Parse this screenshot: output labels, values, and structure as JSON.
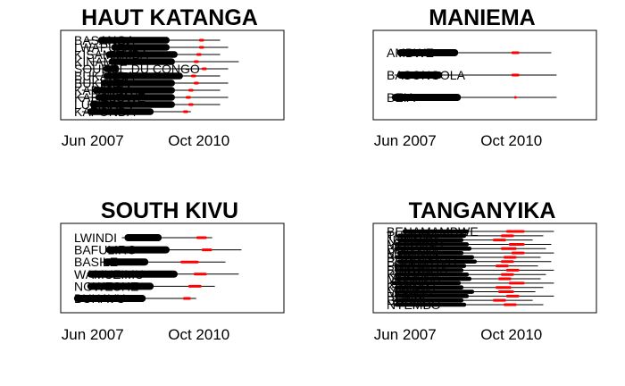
{
  "chart_data": [
    {
      "type": "timeline",
      "title": "HAUT KATANGA",
      "xticks": [
        "Jun 2007",
        "Oct 2010"
      ],
      "rows": [
        {
          "label": "BASANGA",
          "line": [
            "2007-03",
            "2011-06"
          ],
          "bar": [
            "2007-08",
            "2009-11"
          ],
          "red": [
            "2010-10",
            "2010-12"
          ]
        },
        {
          "label": "LWAPULA",
          "line": [
            "2007-02",
            "2011-09"
          ],
          "bar": [
            "2008-01",
            "2009-11"
          ],
          "red": [
            "2010-10",
            "2010-12"
          ]
        },
        {
          "label": "KISAMAMBA",
          "line": [
            "2007-04",
            "2011-06"
          ],
          "bar": [
            "2007-11",
            "2010-02"
          ],
          "red": [
            "2010-09",
            "2010-11"
          ]
        },
        {
          "label": "KINAMA",
          "line": [
            "2007-05",
            "2012-01"
          ],
          "bar": [
            "2007-12",
            "2010-01"
          ],
          "red": [
            "2010-08",
            "2010-10"
          ]
        },
        {
          "label": "SOURCE DU CONGO",
          "line": [
            "2007-02",
            "2011-09"
          ],
          "bar": [
            "2007-10",
            "2008-04"
          ],
          "red": [
            "2010-11",
            "2011-01"
          ]
        },
        {
          "label": "BUKANDA",
          "line": [
            "2007-04",
            "2011-06"
          ],
          "bar": [
            "2007-10",
            "2010-04"
          ],
          "red": [
            "2010-07",
            "2010-09"
          ]
        },
        {
          "label": "BUKINDA",
          "line": [
            "2007-01",
            "2011-09"
          ],
          "bar": [
            "2007-09",
            "2010-01"
          ],
          "red": [
            "2010-08",
            "2010-10"
          ]
        },
        {
          "label": "KAPANDA",
          "line": [
            "2007-02",
            "2011-06"
          ],
          "bar": [
            "2007-06",
            "2010-01"
          ],
          "red": [
            "2010-06",
            "2010-08"
          ]
        },
        {
          "label": "KAPOLOWE",
          "line": [
            "2006-12",
            "2011-09"
          ],
          "bar": [
            "2007-07",
            "2010-01"
          ],
          "red": [
            "2010-05",
            "2010-07"
          ]
        },
        {
          "label": "LUFIRA",
          "line": [
            "2007-04",
            "2011-06"
          ],
          "bar": [
            "2007-05",
            "2010-01"
          ],
          "red": [
            "2010-06",
            "2010-08"
          ]
        },
        {
          "label": "KAPONDA",
          "line": [
            "2007-02",
            "2010-07"
          ],
          "bar": [
            "2007-04",
            "2009-05"
          ],
          "red": [
            "2010-04",
            "2010-06"
          ]
        }
      ]
    },
    {
      "type": "timeline",
      "title": "MANIEMA",
      "xticks": [
        "Jun 2007",
        "Oct 2010"
      ],
      "rows": [
        {
          "label": "AMBWE",
          "line": [
            "2007-03",
            "2012-01"
          ],
          "bar": [
            "2007-03",
            "2009-02"
          ],
          "red": [
            "2010-10",
            "2011-01"
          ]
        },
        {
          "label": "BASONGOLA",
          "line": [
            "2007-02",
            "2012-03"
          ],
          "bar": [
            "2007-03",
            "2008-08"
          ],
          "red": [
            "2010-10",
            "2011-01"
          ]
        },
        {
          "label": "BEIA",
          "line": [
            "2007-01",
            "2012-03"
          ],
          "bar": [
            "2007-01",
            "2009-03"
          ],
          "red": [
            "2010-11",
            "2010-12"
          ]
        }
      ]
    },
    {
      "type": "timeline",
      "title": "SOUTH KIVU",
      "xticks": [
        "Jun 2007",
        "Oct 2010"
      ],
      "rows": [
        {
          "label": "LWINDI",
          "line": [
            "2008-05",
            "2011-03"
          ],
          "bar": [
            "2008-06",
            "2009-08"
          ],
          "red": [
            "2010-09",
            "2011-01"
          ]
        },
        {
          "label": "BAFULIRO",
          "line": [
            "2007-11",
            "2012-02"
          ],
          "bar": [
            "2007-11",
            "2009-11"
          ],
          "red": [
            "2010-11",
            "2011-03"
          ]
        },
        {
          "label": "BASILE",
          "line": [
            "2007-09",
            "2011-08"
          ],
          "bar": [
            "2007-10",
            "2009-03"
          ],
          "red": [
            "2010-03",
            "2010-10"
          ]
        },
        {
          "label": "WAMUZIMU",
          "line": [
            "2007-04",
            "2012-01"
          ],
          "bar": [
            "2007-04",
            "2010-02"
          ],
          "red": [
            "2010-08",
            "2011-01"
          ]
        },
        {
          "label": "NGWESHE",
          "line": [
            "2007-04",
            "2011-04"
          ],
          "bar": [
            "2007-04",
            "2009-05"
          ],
          "red": [
            "2010-06",
            "2010-11"
          ]
        },
        {
          "label": "BUHAVU",
          "line": [
            "2006-11",
            "2010-09"
          ],
          "bar": [
            "2006-11",
            "2009-02"
          ],
          "red": [
            "2010-04",
            "2010-07"
          ]
        }
      ]
    },
    {
      "type": "timeline",
      "title": "TANGANYIKA",
      "xticks": [
        "Jun 2007",
        "Oct 2010"
      ],
      "rows": [
        {
          "label": "BENAMAMBWE",
          "line": [
            "2007-04",
            "2012-02"
          ],
          "bar": [
            "2007-05",
            "2009-06"
          ],
          "red": [
            "2010-08",
            "2011-03"
          ]
        },
        {
          "label": "TUMBWE",
          "line": [
            "2007-02",
            "2011-10"
          ],
          "bar": [
            "2007-03",
            "2009-05"
          ],
          "red": [
            "2010-06",
            "2010-11"
          ]
        },
        {
          "label": "NYUNZU",
          "line": [
            "2007-02",
            "2011-06"
          ],
          "bar": [
            "2007-03",
            "2009-04"
          ],
          "red": [
            "2010-03",
            "2010-08"
          ]
        },
        {
          "label": "MOKONO",
          "line": [
            "2007-01",
            "2012-01"
          ],
          "bar": [
            "2007-02",
            "2009-06"
          ],
          "red": [
            "2010-09",
            "2011-03"
          ]
        },
        {
          "label": "BALEGA",
          "line": [
            "2007-01",
            "2011-11"
          ],
          "bar": [
            "2007-02",
            "2009-07"
          ],
          "red": [
            "2010-06",
            "2010-12"
          ]
        },
        {
          "label": "MWANGE",
          "line": [
            "2007-02",
            "2012-02"
          ],
          "bar": [
            "2007-03",
            "2009-04"
          ],
          "red": [
            "2010-10",
            "2011-03"
          ]
        },
        {
          "label": "BAYOVU",
          "line": [
            "2007-01",
            "2011-09"
          ],
          "bar": [
            "2007-02",
            "2009-08"
          ],
          "red": [
            "2010-07",
            "2010-12"
          ]
        },
        {
          "label": "BUDUVUVU",
          "line": [
            "2007-03",
            "2012-01"
          ],
          "bar": [
            "2007-03",
            "2009-09"
          ],
          "red": [
            "2010-06",
            "2010-11"
          ]
        },
        {
          "label": "LUVUA",
          "line": [
            "2007-01",
            "2011-08"
          ],
          "bar": [
            "2007-02",
            "2009-05"
          ],
          "red": [
            "2010-04",
            "2010-09"
          ]
        },
        {
          "label": "BUKUNDA",
          "line": [
            "2007-02",
            "2012-02"
          ],
          "bar": [
            "2007-02",
            "2009-04"
          ],
          "red": [
            "2010-08",
            "2011-01"
          ]
        },
        {
          "label": "KIBOGA",
          "line": [
            "2007-01",
            "2011-11"
          ],
          "bar": [
            "2007-02",
            "2009-06"
          ],
          "red": [
            "2010-06",
            "2010-11"
          ]
        },
        {
          "label": "MUSOSA",
          "line": [
            "2007-01",
            "2011-09"
          ],
          "bar": [
            "2007-02",
            "2009-07"
          ],
          "red": [
            "2010-05",
            "2010-10"
          ]
        },
        {
          "label": "KANDA",
          "line": [
            "2006-12",
            "2012-02"
          ],
          "bar": [
            "2007-01",
            "2009-03"
          ],
          "red": [
            "2010-09",
            "2011-03"
          ]
        },
        {
          "label": "KIMBALI",
          "line": [
            "2007-01",
            "2011-10"
          ],
          "bar": [
            "2007-02",
            "2009-04"
          ],
          "red": [
            "2010-04",
            "2010-10"
          ]
        },
        {
          "label": "MAMBA",
          "line": [
            "2007-02",
            "2011-07"
          ],
          "bar": [
            "2007-02",
            "2009-08"
          ],
          "red": [
            "2010-05",
            "2010-11"
          ]
        },
        {
          "label": "BEMBE",
          "line": [
            "2007-01",
            "2012-02"
          ],
          "bar": [
            "2007-02",
            "2009-06"
          ],
          "red": [
            "2010-08",
            "2011-01"
          ]
        },
        {
          "label": "BONYE",
          "line": [
            "2007-01",
            "2011-06"
          ],
          "bar": [
            "2007-02",
            "2009-04"
          ],
          "red": [
            "2010-03",
            "2010-08"
          ]
        },
        {
          "label": "NYEMBO",
          "line": [
            "2007-01",
            "2011-10"
          ],
          "bar": [
            "2007-02",
            "2009-05"
          ],
          "red": [
            "2010-07",
            "2010-12"
          ]
        }
      ]
    }
  ],
  "colors": {
    "bar": "#000000",
    "line": "#000000",
    "highlight": "#ff0000",
    "frame": "#000000"
  }
}
